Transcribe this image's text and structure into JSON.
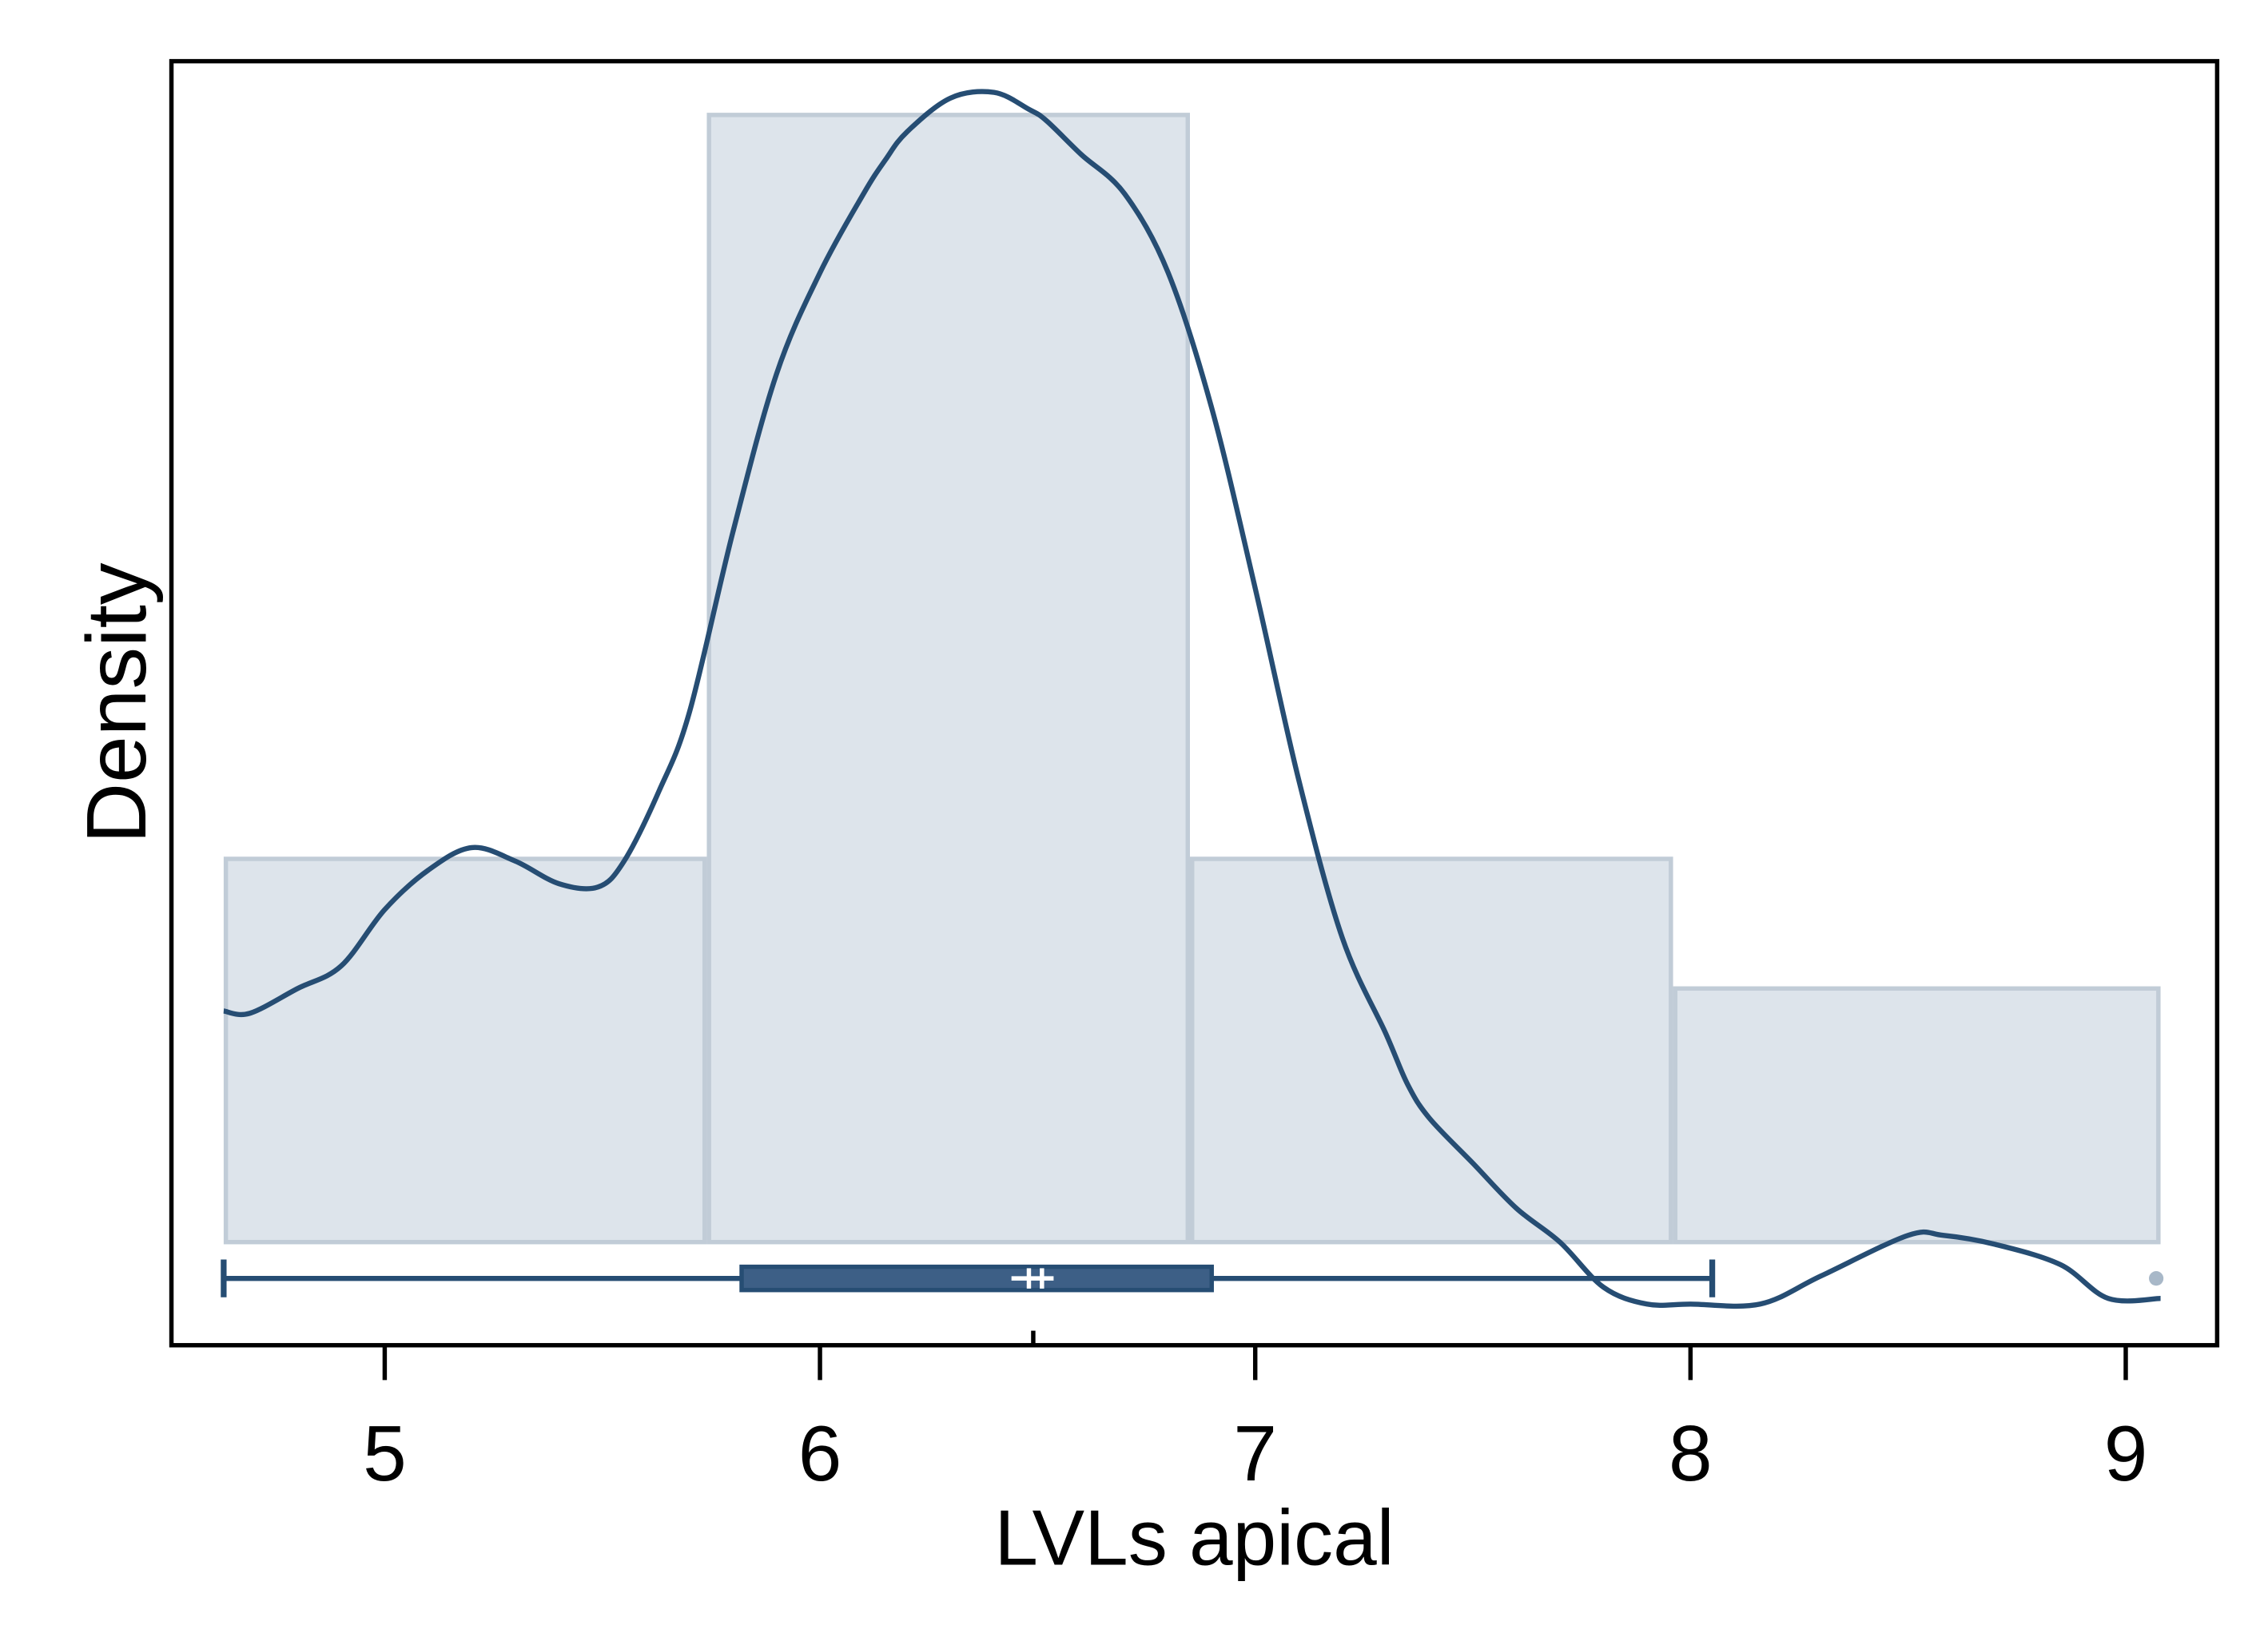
{
  "chart_data": {
    "type": "histogram",
    "title": "",
    "xlabel": "LVLs apical",
    "ylabel": "Density",
    "xlim": [
      4.51,
      9.21
    ],
    "x_ticks": [
      5,
      6,
      7,
      8,
      9
    ],
    "x_tick_labels": [
      "5",
      "6",
      "7",
      "8",
      "9"
    ],
    "y_ticks_shown": false,
    "grid": false,
    "legend": "none",
    "histogram": {
      "bin_edges": [
        4.63,
        5.74,
        6.85,
        7.96,
        9.08
      ],
      "heights": [
        0.34,
        1.0,
        0.34,
        0.225
      ],
      "relative_scale": true
    },
    "density_curve": {
      "x": [
        4.63,
        4.69,
        4.8,
        4.9,
        5.0,
        5.1,
        5.2,
        5.3,
        5.4,
        5.49,
        5.55,
        5.63,
        5.7,
        5.8,
        5.9,
        6.0,
        6.1,
        6.15,
        6.2,
        6.3,
        6.4,
        6.48,
        6.52,
        6.6,
        6.7,
        6.8,
        6.9,
        7.0,
        7.1,
        7.2,
        7.3,
        7.35,
        7.4,
        7.5,
        7.6,
        7.7,
        7.8,
        7.9,
        8.0,
        8.16,
        8.3,
        8.5,
        8.58,
        8.7,
        8.85,
        8.96,
        9.08
      ],
      "y": [
        0.205,
        0.203,
        0.225,
        0.245,
        0.295,
        0.33,
        0.35,
        0.338,
        0.318,
        0.315,
        0.338,
        0.4,
        0.47,
        0.63,
        0.77,
        0.86,
        0.93,
        0.96,
        0.985,
        1.015,
        1.02,
        1.005,
        0.995,
        0.965,
        0.93,
        0.86,
        0.74,
        0.58,
        0.41,
        0.27,
        0.185,
        0.14,
        0.11,
        0.07,
        0.03,
        0.0,
        -0.04,
        -0.055,
        -0.055,
        -0.055,
        -0.03,
        0.006,
        0.006,
        -0.002,
        -0.02,
        -0.05,
        -0.05
      ]
    },
    "boxplot": {
      "whisker_low": 4.63,
      "q1": 5.82,
      "median": 6.48,
      "mean": 6.5,
      "q3": 6.9,
      "whisker_high": 8.05,
      "outliers": [
        9.07
      ]
    },
    "mean_marker_x": 6.49,
    "colors": {
      "bar_fill": "#dde4eb",
      "bar_stroke": "#c1ccd7",
      "curve": "#264d73",
      "box_fill": "#3d5f86",
      "box_stroke": "#264d73",
      "outlier": "#a8b8c8",
      "frame": "#000000"
    }
  }
}
